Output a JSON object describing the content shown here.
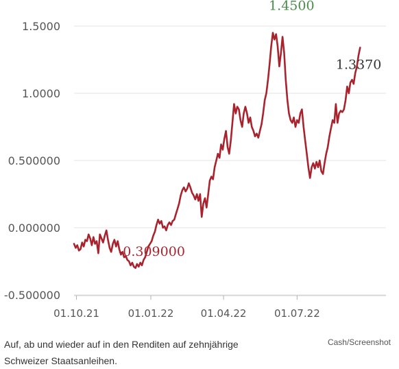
{
  "chart_data": {
    "type": "line",
    "title": "",
    "xlabel": "",
    "ylabel": "",
    "x_ticks": [
      "01.10.21",
      "01.01.22",
      "01.04.22",
      "01.07.22"
    ],
    "x_range": [
      "2021-09-28",
      "2022-10-19"
    ],
    "y_ticks": [
      "1.5000",
      "1.0000",
      "0.500000",
      "0.000000",
      "-0.500000"
    ],
    "y_tick_values": [
      1.5,
      1.0,
      0.5,
      0.0,
      -0.5
    ],
    "ylim": [
      -0.5,
      1.5
    ],
    "grid": "horizontal",
    "line_color": "#a8232d",
    "series": [
      {
        "points": [
          [
            "2021-09-28",
            -0.12
          ],
          [
            "2021-09-30",
            -0.15
          ],
          [
            "2021-10-02",
            -0.13
          ],
          [
            "2021-10-04",
            -0.17
          ],
          [
            "2021-10-06",
            -0.16
          ],
          [
            "2021-10-08",
            -0.11
          ],
          [
            "2021-10-10",
            -0.14
          ],
          [
            "2021-10-12",
            -0.09
          ],
          [
            "2021-10-14",
            -0.1
          ],
          [
            "2021-10-16",
            -0.05
          ],
          [
            "2021-10-18",
            -0.08
          ],
          [
            "2021-10-20",
            -0.13
          ],
          [
            "2021-10-22",
            -0.07
          ],
          [
            "2021-10-24",
            -0.12
          ],
          [
            "2021-10-26",
            -0.1
          ],
          [
            "2021-10-28",
            -0.19
          ],
          [
            "2021-10-30",
            -0.05
          ],
          [
            "2021-11-01",
            -0.08
          ],
          [
            "2021-11-03",
            -0.11
          ],
          [
            "2021-11-05",
            -0.06
          ],
          [
            "2021-11-07",
            -0.02
          ],
          [
            "2021-11-09",
            -0.09
          ],
          [
            "2021-11-11",
            -0.15
          ],
          [
            "2021-11-13",
            -0.18
          ],
          [
            "2021-11-15",
            -0.12
          ],
          [
            "2021-11-17",
            -0.09
          ],
          [
            "2021-11-19",
            -0.14
          ],
          [
            "2021-11-21",
            -0.1
          ],
          [
            "2021-11-23",
            -0.16
          ],
          [
            "2021-11-25",
            -0.2
          ],
          [
            "2021-11-27",
            -0.18
          ],
          [
            "2021-11-29",
            -0.22
          ],
          [
            "2021-12-01",
            -0.21
          ],
          [
            "2021-12-03",
            -0.24
          ],
          [
            "2021-12-05",
            -0.25
          ],
          [
            "2021-12-07",
            -0.28
          ],
          [
            "2021-12-09",
            -0.26
          ],
          [
            "2021-12-11",
            -0.29
          ],
          [
            "2021-12-13",
            -0.3
          ],
          [
            "2021-12-15",
            -0.27
          ],
          [
            "2021-12-17",
            -0.29
          ],
          [
            "2021-12-19",
            -0.26
          ],
          [
            "2021-12-21",
            -0.28
          ],
          [
            "2021-12-23",
            -0.24
          ],
          [
            "2021-12-25",
            -0.22
          ],
          [
            "2021-12-27",
            -0.18
          ],
          [
            "2021-12-29",
            -0.14
          ],
          [
            "2021-12-31",
            -0.12
          ],
          [
            "2022-01-02",
            -0.1
          ],
          [
            "2022-01-04",
            -0.06
          ],
          [
            "2022-01-06",
            -0.03
          ],
          [
            "2022-01-08",
            0.02
          ],
          [
            "2022-01-10",
            0.06
          ],
          [
            "2022-01-12",
            0.03
          ],
          [
            "2022-01-14",
            0.05
          ],
          [
            "2022-01-16",
            0.0
          ],
          [
            "2022-01-18",
            0.01
          ],
          [
            "2022-01-20",
            -0.02
          ],
          [
            "2022-01-22",
            0.02
          ],
          [
            "2022-01-24",
            0.04
          ],
          [
            "2022-01-26",
            0.02
          ],
          [
            "2022-01-28",
            0.05
          ],
          [
            "2022-01-30",
            0.06
          ],
          [
            "2022-02-01",
            0.1
          ],
          [
            "2022-02-03",
            0.14
          ],
          [
            "2022-02-05",
            0.18
          ],
          [
            "2022-02-07",
            0.24
          ],
          [
            "2022-02-09",
            0.28
          ],
          [
            "2022-02-11",
            0.3
          ],
          [
            "2022-02-13",
            0.27
          ],
          [
            "2022-02-15",
            0.29
          ],
          [
            "2022-02-17",
            0.33
          ],
          [
            "2022-02-19",
            0.3
          ],
          [
            "2022-02-21",
            0.26
          ],
          [
            "2022-02-23",
            0.24
          ],
          [
            "2022-02-25",
            0.21
          ],
          [
            "2022-02-27",
            0.25
          ],
          [
            "2022-03-01",
            0.2
          ],
          [
            "2022-03-03",
            0.25
          ],
          [
            "2022-03-05",
            0.08
          ],
          [
            "2022-03-07",
            0.18
          ],
          [
            "2022-03-09",
            0.22
          ],
          [
            "2022-03-11",
            0.15
          ],
          [
            "2022-03-13",
            0.25
          ],
          [
            "2022-03-15",
            0.35
          ],
          [
            "2022-03-17",
            0.38
          ],
          [
            "2022-03-19",
            0.36
          ],
          [
            "2022-03-21",
            0.45
          ],
          [
            "2022-03-23",
            0.5
          ],
          [
            "2022-03-25",
            0.55
          ],
          [
            "2022-03-27",
            0.52
          ],
          [
            "2022-03-29",
            0.62
          ],
          [
            "2022-03-31",
            0.58
          ],
          [
            "2022-04-02",
            0.66
          ],
          [
            "2022-04-04",
            0.72
          ],
          [
            "2022-04-06",
            0.6
          ],
          [
            "2022-04-08",
            0.55
          ],
          [
            "2022-04-10",
            0.65
          ],
          [
            "2022-04-12",
            0.78
          ],
          [
            "2022-04-14",
            0.92
          ],
          [
            "2022-04-16",
            0.85
          ],
          [
            "2022-04-18",
            0.9
          ],
          [
            "2022-04-20",
            0.88
          ],
          [
            "2022-04-22",
            0.8
          ],
          [
            "2022-04-24",
            0.75
          ],
          [
            "2022-04-26",
            0.85
          ],
          [
            "2022-04-28",
            0.9
          ],
          [
            "2022-04-30",
            0.85
          ],
          [
            "2022-05-02",
            0.78
          ],
          [
            "2022-05-04",
            0.82
          ],
          [
            "2022-05-06",
            0.75
          ],
          [
            "2022-05-08",
            0.72
          ],
          [
            "2022-05-10",
            0.68
          ],
          [
            "2022-05-12",
            0.7
          ],
          [
            "2022-05-14",
            0.67
          ],
          [
            "2022-05-16",
            0.72
          ],
          [
            "2022-05-18",
            0.77
          ],
          [
            "2022-05-20",
            0.85
          ],
          [
            "2022-05-22",
            0.95
          ],
          [
            "2022-05-24",
            1.0
          ],
          [
            "2022-05-26",
            1.1
          ],
          [
            "2022-05-28",
            1.22
          ],
          [
            "2022-05-30",
            1.35
          ],
          [
            "2022-06-01",
            1.45
          ],
          [
            "2022-06-03",
            1.4
          ],
          [
            "2022-06-05",
            1.44
          ],
          [
            "2022-06-07",
            1.35
          ],
          [
            "2022-06-09",
            1.2
          ],
          [
            "2022-06-11",
            1.3
          ],
          [
            "2022-06-13",
            1.42
          ],
          [
            "2022-06-15",
            1.3
          ],
          [
            "2022-06-17",
            1.1
          ],
          [
            "2022-06-19",
            0.95
          ],
          [
            "2022-06-21",
            0.85
          ],
          [
            "2022-06-23",
            0.8
          ],
          [
            "2022-06-25",
            0.78
          ],
          [
            "2022-06-27",
            0.82
          ],
          [
            "2022-06-29",
            0.75
          ],
          [
            "2022-07-01",
            0.8
          ],
          [
            "2022-07-03",
            0.78
          ],
          [
            "2022-07-05",
            0.85
          ],
          [
            "2022-07-07",
            0.88
          ],
          [
            "2022-07-09",
            0.75
          ],
          [
            "2022-07-11",
            0.65
          ],
          [
            "2022-07-13",
            0.55
          ],
          [
            "2022-07-15",
            0.45
          ],
          [
            "2022-07-17",
            0.37
          ],
          [
            "2022-07-19",
            0.45
          ],
          [
            "2022-07-21",
            0.48
          ],
          [
            "2022-07-23",
            0.44
          ],
          [
            "2022-07-25",
            0.49
          ],
          [
            "2022-07-27",
            0.45
          ],
          [
            "2022-07-29",
            0.5
          ],
          [
            "2022-07-31",
            0.42
          ],
          [
            "2022-08-02",
            0.4
          ],
          [
            "2022-08-04",
            0.48
          ],
          [
            "2022-08-06",
            0.55
          ],
          [
            "2022-08-08",
            0.6
          ],
          [
            "2022-08-10",
            0.68
          ],
          [
            "2022-08-12",
            0.74
          ],
          [
            "2022-08-14",
            0.8
          ],
          [
            "2022-08-16",
            0.78
          ],
          [
            "2022-08-18",
            0.92
          ],
          [
            "2022-08-20",
            0.78
          ],
          [
            "2022-08-22",
            0.85
          ],
          [
            "2022-08-24",
            0.87
          ],
          [
            "2022-08-26",
            0.86
          ],
          [
            "2022-08-28",
            0.88
          ],
          [
            "2022-08-30",
            0.95
          ],
          [
            "2022-09-01",
            1.05
          ],
          [
            "2022-09-03",
            1.0
          ],
          [
            "2022-09-05",
            1.08
          ],
          [
            "2022-09-07",
            1.1
          ],
          [
            "2022-09-09",
            1.07
          ],
          [
            "2022-09-11",
            1.15
          ],
          [
            "2022-09-13",
            1.2
          ],
          [
            "2022-09-15",
            1.28
          ],
          [
            "2022-09-17",
            1.34
          ]
        ]
      }
    ],
    "annotations": [
      {
        "text": "1.4500",
        "x": "2022-05-27",
        "y": 1.62,
        "color": "#4a8a4a"
      },
      {
        "text": "1.3370",
        "x": "2022-08-18",
        "y": 1.18,
        "color": "#333333"
      },
      {
        "text": "-0.309000",
        "x": "2021-11-22",
        "y": -0.21,
        "color": "#a8232d"
      }
    ]
  },
  "caption": "Auf, ab und wieder auf in den Renditen auf zehnjährige Schweizer Staatsanleihen.",
  "source": "Cash/Screenshot"
}
